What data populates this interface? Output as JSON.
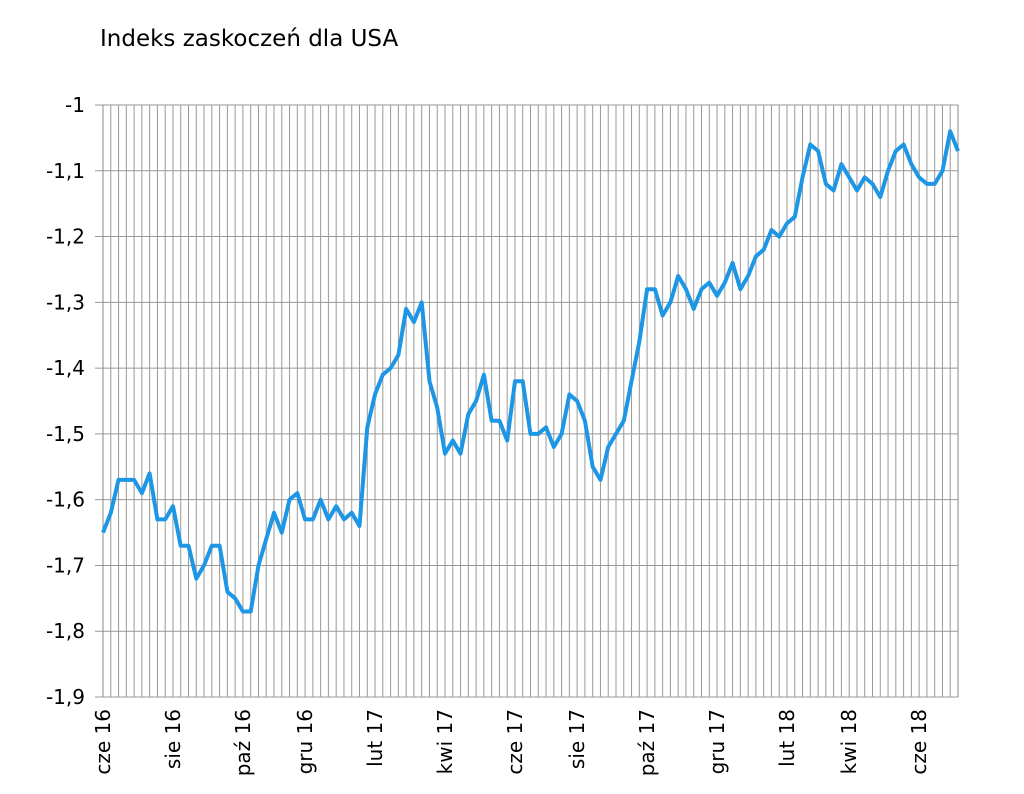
{
  "chart_data": {
    "type": "line",
    "title": "Indeks zaskoczeń dla USA",
    "categories": [
      "cze 16",
      null,
      null,
      null,
      null,
      null,
      null,
      null,
      null,
      "sie 16",
      null,
      null,
      null,
      null,
      null,
      null,
      null,
      null,
      "paź 16",
      null,
      null,
      null,
      null,
      null,
      null,
      null,
      "gru 16",
      null,
      null,
      null,
      null,
      null,
      null,
      null,
      null,
      "lut 17",
      null,
      null,
      null,
      null,
      null,
      null,
      null,
      null,
      "kwi 17",
      null,
      null,
      null,
      null,
      null,
      null,
      null,
      null,
      "cze 17",
      null,
      null,
      null,
      null,
      null,
      null,
      null,
      "sie 17",
      null,
      null,
      null,
      null,
      null,
      null,
      null,
      null,
      "paź 17",
      null,
      null,
      null,
      null,
      null,
      null,
      null,
      null,
      "gru 17",
      null,
      null,
      null,
      null,
      null,
      null,
      null,
      null,
      "lut 18",
      null,
      null,
      null,
      null,
      null,
      null,
      null,
      "kwi 18",
      null,
      null,
      null,
      null,
      null,
      null,
      null,
      null,
      "cze 18",
      null,
      null,
      null,
      null,
      null
    ],
    "values": [
      -1.65,
      -1.62,
      -1.57,
      -1.57,
      -1.57,
      -1.59,
      -1.56,
      -1.63,
      -1.63,
      -1.61,
      -1.67,
      -1.67,
      -1.72,
      -1.7,
      -1.67,
      -1.67,
      -1.74,
      -1.75,
      -1.77,
      -1.77,
      -1.7,
      -1.66,
      -1.62,
      -1.65,
      -1.6,
      -1.59,
      -1.63,
      -1.63,
      -1.6,
      -1.63,
      -1.61,
      -1.63,
      -1.62,
      -1.64,
      -1.49,
      -1.44,
      -1.41,
      -1.4,
      -1.38,
      -1.31,
      -1.33,
      -1.3,
      -1.42,
      -1.46,
      -1.53,
      -1.51,
      -1.53,
      -1.47,
      -1.45,
      -1.41,
      -1.48,
      -1.48,
      -1.51,
      -1.42,
      -1.42,
      -1.5,
      -1.5,
      -1.49,
      -1.52,
      -1.5,
      -1.44,
      -1.45,
      -1.48,
      -1.55,
      -1.57,
      -1.52,
      -1.5,
      -1.48,
      -1.42,
      -1.36,
      -1.28,
      -1.28,
      -1.32,
      -1.3,
      -1.26,
      -1.28,
      -1.31,
      -1.28,
      -1.27,
      -1.29,
      -1.27,
      -1.24,
      -1.28,
      -1.26,
      -1.23,
      -1.22,
      -1.19,
      -1.2,
      -1.18,
      -1.17,
      -1.11,
      -1.06,
      -1.07,
      -1.12,
      -1.13,
      -1.09,
      -1.11,
      -1.13,
      -1.11,
      -1.12,
      -1.14,
      -1.1,
      -1.07,
      -1.06,
      -1.09,
      -1.11,
      -1.12,
      -1.12,
      -1.1,
      -1.04,
      -1.07
    ],
    "color": "#1e96e6",
    "ylim": [
      -1.9,
      -1
    ],
    "yticks": [
      {
        "value": -1.9,
        "label": "-1,9"
      },
      {
        "value": -1.8,
        "label": "-1,8"
      },
      {
        "value": -1.7,
        "label": "-1,7"
      },
      {
        "value": -1.6,
        "label": "-1,6"
      },
      {
        "value": -1.5,
        "label": "-1,5"
      },
      {
        "value": -1.4,
        "label": "-1,4"
      },
      {
        "value": -1.3,
        "label": "-1,3"
      },
      {
        "value": -1.2,
        "label": "-1,2"
      },
      {
        "value": -1.1,
        "label": "-1,1"
      },
      -1
    ],
    "grid": true
  }
}
